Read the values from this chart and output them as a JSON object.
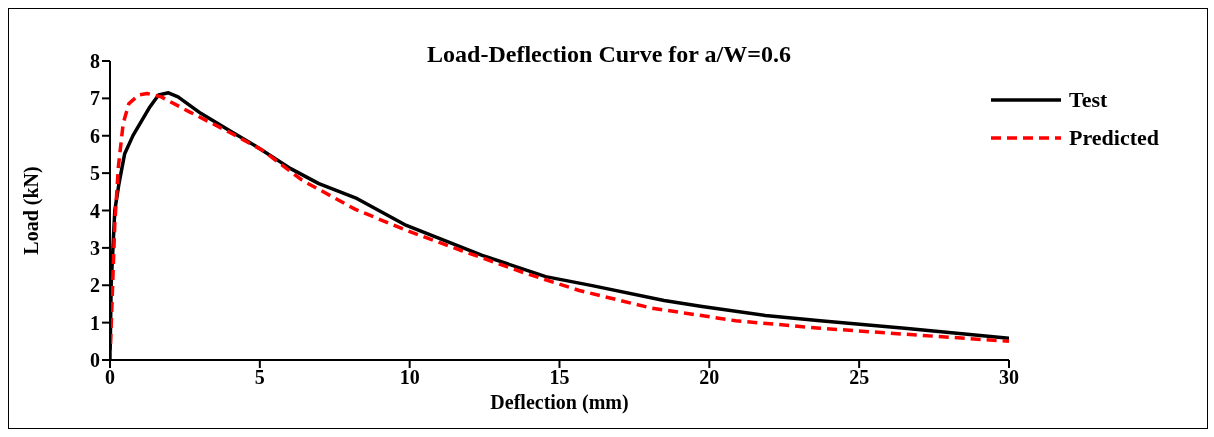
{
  "chart_data": {
    "type": "line",
    "title": "Load-Deflection Curve for a/W=0.6",
    "xlabel": "Deflection (mm)",
    "ylabel": "Load (kN)",
    "xlim": [
      0,
      30
    ],
    "xticks": [
      0,
      5,
      10,
      15,
      20,
      25,
      30
    ],
    "ylim": [
      0,
      8
    ],
    "yticks": [
      0,
      1,
      2,
      3,
      4,
      5,
      6,
      7,
      8
    ],
    "grid": false,
    "legend": "top right",
    "marker": "none",
    "series": [
      {
        "name": "Test",
        "color": "#000000",
        "line_style": "solid",
        "x": [
          0,
          0.04,
          0.16,
          0.3,
          0.49,
          0.77,
          1.33,
          1.62,
          1.95,
          2.27,
          3.03,
          3.97,
          4.91,
          6.03,
          6.97,
          8.19,
          9.89,
          12.42,
          14.54,
          16.09,
          18.49,
          19.76,
          21.87,
          23.7,
          26.52,
          30
        ],
        "values": [
          0,
          2.04,
          4.0,
          4.72,
          5.52,
          6.01,
          6.77,
          7.09,
          7.15,
          7.04,
          6.6,
          6.15,
          5.7,
          5.12,
          4.72,
          4.34,
          3.6,
          2.8,
          2.23,
          1.99,
          1.59,
          1.43,
          1.19,
          1.05,
          0.85,
          0.58
        ]
      },
      {
        "name": "Predicted",
        "color": "#ff0000",
        "line_style": "dashed",
        "x": [
          0,
          0.07,
          0.16,
          0.28,
          0.44,
          0.63,
          0.96,
          1.24,
          1.71,
          2.65,
          3.97,
          5.09,
          6.41,
          8.19,
          9.89,
          11.72,
          13.83,
          15.66,
          18.06,
          20.88,
          23.7,
          26.52,
          30
        ],
        "values": [
          0,
          1.59,
          3.65,
          5.17,
          6.33,
          6.86,
          7.09,
          7.13,
          7.04,
          6.64,
          6.1,
          5.61,
          4.81,
          4.03,
          3.47,
          2.93,
          2.33,
          1.86,
          1.39,
          1.05,
          0.85,
          0.69,
          0.5
        ]
      }
    ]
  }
}
